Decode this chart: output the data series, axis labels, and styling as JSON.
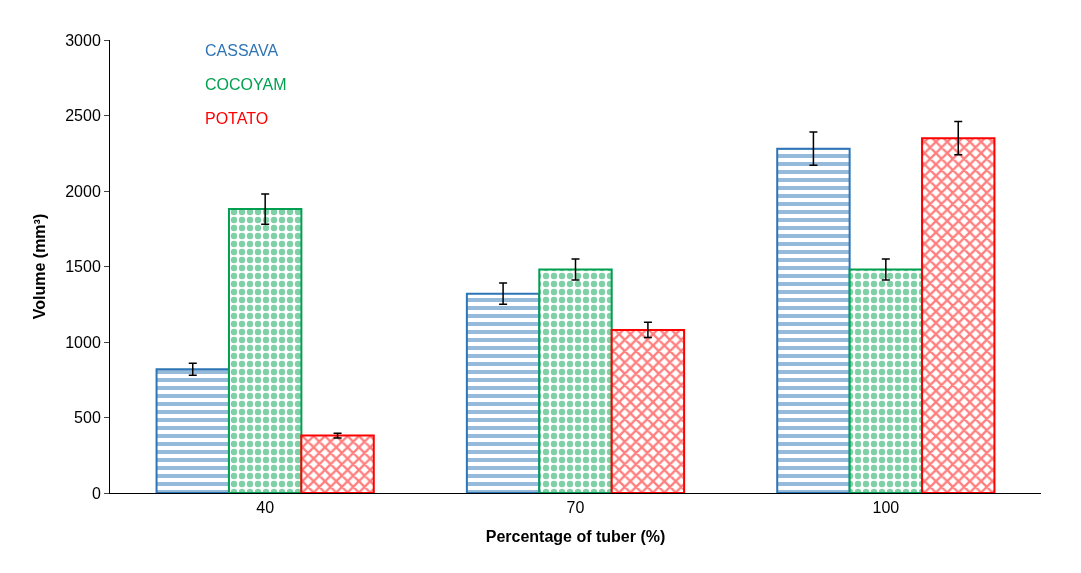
{
  "chart_data": {
    "type": "bar",
    "xlabel": "Percentage of tuber (%)",
    "ylabel": "Volume (mm³)",
    "categories": [
      "40",
      "70",
      "100"
    ],
    "series": [
      {
        "name": "CASSAVA",
        "color": "#2e75b6",
        "values": [
          820,
          1320,
          2280
        ],
        "errors": [
          40,
          70,
          110
        ]
      },
      {
        "name": "COCOYAM",
        "color": "#00a050",
        "values": [
          1880,
          1480,
          1480
        ],
        "errors": [
          100,
          70,
          70
        ]
      },
      {
        "name": "POTATO",
        "color": "#ff0000",
        "values": [
          380,
          1080,
          2350
        ],
        "errors": [
          15,
          50,
          110
        ]
      }
    ],
    "ylim": [
      0,
      3000
    ],
    "yticks": [
      0,
      500,
      1000,
      1500,
      2000,
      2500,
      3000
    ]
  }
}
